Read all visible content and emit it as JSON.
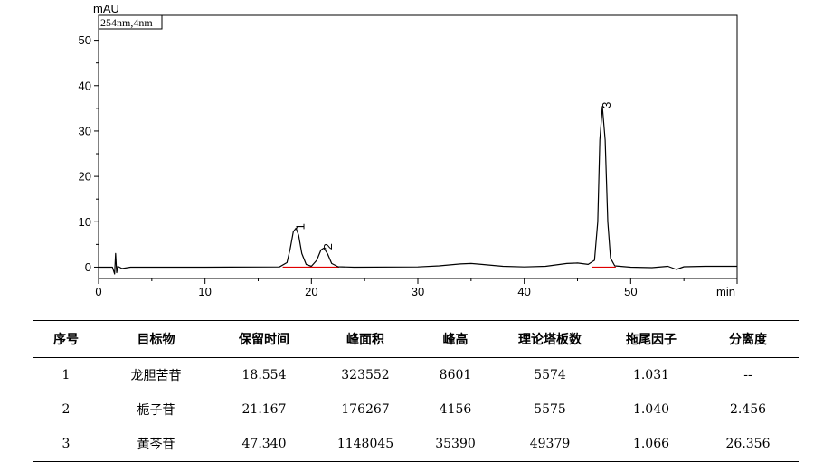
{
  "chart_data": {
    "type": "line",
    "ylabel": "mAU",
    "xlabel": "min",
    "legend_box": "254nm,4nm",
    "xlim": [
      0,
      60
    ],
    "ylim": [
      -2.5,
      55.5
    ],
    "xticks": [
      0,
      10,
      20,
      30,
      40,
      50
    ],
    "yticks": [
      0,
      10,
      20,
      30,
      40,
      50
    ],
    "peaks": [
      {
        "label": "1",
        "rt": 18.55,
        "height": 8.6
      },
      {
        "label": "2",
        "rt": 21.17,
        "height": 4.2
      },
      {
        "label": "3",
        "rt": 47.34,
        "height": 35.4
      }
    ],
    "trace": [
      [
        0,
        0.0
      ],
      [
        1.3,
        0.0
      ],
      [
        1.5,
        -1.5
      ],
      [
        1.6,
        3.0
      ],
      [
        1.7,
        -1.2
      ],
      [
        1.8,
        0.2
      ],
      [
        2.2,
        -0.3
      ],
      [
        3,
        0.0
      ],
      [
        10,
        0.0
      ],
      [
        17.0,
        0.05
      ],
      [
        17.7,
        1.0
      ],
      [
        18.0,
        4.0
      ],
      [
        18.3,
        7.8
      ],
      [
        18.55,
        8.6
      ],
      [
        18.8,
        7.0
      ],
      [
        19.1,
        3.0
      ],
      [
        19.5,
        0.6
      ],
      [
        20.0,
        0.2
      ],
      [
        20.5,
        1.5
      ],
      [
        20.9,
        3.8
      ],
      [
        21.17,
        4.2
      ],
      [
        21.5,
        3.0
      ],
      [
        21.9,
        0.8
      ],
      [
        22.5,
        0.1
      ],
      [
        24,
        0.0
      ],
      [
        30,
        0.05
      ],
      [
        32,
        0.3
      ],
      [
        34,
        0.7
      ],
      [
        35,
        0.8
      ],
      [
        36,
        0.6
      ],
      [
        38,
        0.2
      ],
      [
        40,
        0.05
      ],
      [
        42,
        0.2
      ],
      [
        44,
        0.8
      ],
      [
        45,
        0.9
      ],
      [
        46,
        0.6
      ],
      [
        46.6,
        1.5
      ],
      [
        46.9,
        10.0
      ],
      [
        47.1,
        28.0
      ],
      [
        47.34,
        35.4
      ],
      [
        47.6,
        28.0
      ],
      [
        47.85,
        10.0
      ],
      [
        48.1,
        2.0
      ],
      [
        48.5,
        0.3
      ],
      [
        50,
        0.0
      ],
      [
        52,
        -0.1
      ],
      [
        53.5,
        0.2
      ],
      [
        54.3,
        -0.5
      ],
      [
        55,
        0.1
      ],
      [
        57,
        0.2
      ],
      [
        60,
        0.2
      ]
    ],
    "baselines": [
      [
        17.3,
        20.0
      ],
      [
        20.0,
        22.6
      ],
      [
        46.4,
        48.6
      ]
    ]
  },
  "colors": {
    "trace": "#000000",
    "baseline": "#e00000"
  },
  "table": {
    "headers": [
      "序号",
      "目标物",
      "保留时间",
      "峰面积",
      "峰高",
      "理论塔板数",
      "拖尾因子",
      "分离度"
    ],
    "rows": [
      [
        "1",
        "龙胆苦苷",
        "18.554",
        "323552",
        "8601",
        "5574",
        "1.031",
        "--"
      ],
      [
        "2",
        "栀子苷",
        "21.167",
        "176267",
        "4156",
        "5575",
        "1.040",
        "2.456"
      ],
      [
        "3",
        "黄芩苷",
        "47.340",
        "1148045",
        "35390",
        "49379",
        "1.066",
        "26.356"
      ]
    ]
  }
}
